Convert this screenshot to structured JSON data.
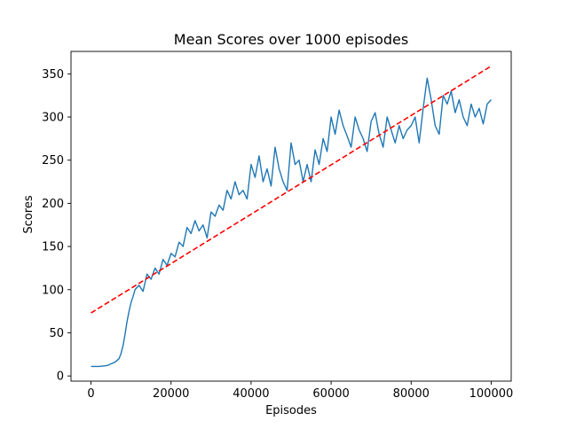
{
  "chart_data": {
    "type": "line",
    "title": "Mean Scores over 1000 episodes",
    "xlabel": "Episodes",
    "ylabel": "Scores",
    "xlim": [
      -5000,
      105000
    ],
    "ylim": [
      -6,
      376
    ],
    "x_ticks": [
      0,
      20000,
      40000,
      60000,
      80000,
      100000
    ],
    "x_tick_labels": [
      "0",
      "20000",
      "40000",
      "60000",
      "80000",
      "100000"
    ],
    "y_ticks": [
      0,
      50,
      100,
      150,
      200,
      250,
      300,
      350
    ],
    "y_tick_labels": [
      "0",
      "50",
      "100",
      "150",
      "200",
      "250",
      "300",
      "350"
    ],
    "grid": false,
    "legend": "none",
    "series": [
      {
        "style": "solid",
        "color": "#1f77b4",
        "x": [
          0,
          2000,
          4000,
          5000,
          6000,
          7000,
          7500,
          8000,
          8500,
          9000,
          9500,
          10000,
          10500,
          11000,
          12000,
          13000,
          14000,
          15000,
          16000,
          17000,
          18000,
          19000,
          20000,
          21000,
          22000,
          23000,
          24000,
          25000,
          26000,
          27000,
          28000,
          29000,
          30000,
          31000,
          32000,
          33000,
          34000,
          35000,
          36000,
          37000,
          38000,
          39000,
          40000,
          41000,
          42000,
          43000,
          44000,
          45000,
          46000,
          47000,
          48000,
          49000,
          50000,
          51000,
          52000,
          53000,
          54000,
          55000,
          56000,
          57000,
          58000,
          59000,
          60000,
          61000,
          62000,
          63000,
          64000,
          65000,
          66000,
          67000,
          68000,
          69000,
          70000,
          71000,
          72000,
          73000,
          74000,
          75000,
          76000,
          77000,
          78000,
          79000,
          80000,
          81000,
          82000,
          83000,
          84000,
          85000,
          86000,
          87000,
          88000,
          89000,
          90000,
          91000,
          92000,
          93000,
          94000,
          95000,
          96000,
          97000,
          98000,
          99000,
          100000
        ],
        "y": [
          11,
          11,
          12,
          14,
          16,
          20,
          26,
          35,
          48,
          63,
          75,
          85,
          92,
          100,
          105,
          98,
          118,
          112,
          125,
          118,
          135,
          128,
          142,
          138,
          155,
          150,
          172,
          165,
          180,
          168,
          175,
          160,
          190,
          185,
          198,
          192,
          215,
          205,
          225,
          210,
          215,
          205,
          245,
          230,
          255,
          225,
          240,
          220,
          265,
          240,
          225,
          215,
          270,
          245,
          250,
          225,
          245,
          225,
          262,
          245,
          275,
          260,
          300,
          280,
          308,
          290,
          278,
          265,
          300,
          285,
          275,
          260,
          295,
          305,
          280,
          265,
          300,
          285,
          270,
          290,
          275,
          285,
          290,
          300,
          270,
          310,
          345,
          320,
          290,
          280,
          325,
          315,
          330,
          305,
          320,
          300,
          290,
          315,
          300,
          310,
          292,
          315,
          320
        ]
      },
      {
        "style": "dashed",
        "color": "#ff0000",
        "x": [
          0,
          100000
        ],
        "y": [
          73,
          359
        ]
      }
    ]
  }
}
